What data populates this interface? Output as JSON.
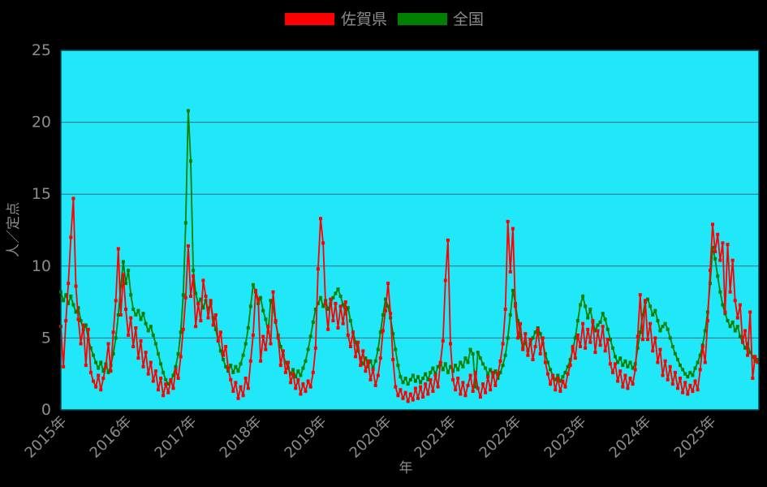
{
  "legend": {
    "entries": [
      {
        "label": "佐賀県",
        "color": "#ff0000"
      },
      {
        "label": "全国",
        "color": "#008000"
      }
    ]
  },
  "y_axis": {
    "title": "人／定点",
    "tick_labels": [
      "0",
      "5",
      "10",
      "15",
      "20",
      "25"
    ]
  },
  "x_axis": {
    "title": "年",
    "tick_labels": [
      "2015年",
      "2016年",
      "2017年",
      "2018年",
      "2019年",
      "2020年",
      "2021年",
      "2022年",
      "2023年",
      "2024年",
      "2025年"
    ]
  },
  "chart_data": {
    "type": "line",
    "title": "",
    "xlabel": "年",
    "ylabel": "人／定点",
    "ylim": [
      0,
      25
    ],
    "y_ticks": [
      0,
      5,
      10,
      15,
      20,
      25
    ],
    "x_tick_years": [
      2015,
      2016,
      2017,
      2018,
      2019,
      2020,
      2021,
      2022,
      2023,
      2024,
      2025
    ],
    "x_start_year": 2015.0,
    "x_step_years": 0.03846,
    "points_per_year": 26,
    "grid": "horizontal-only",
    "legend_position": "top-center",
    "plot_bg_color": "#20e8f8",
    "page_bg_color": "#000000",
    "marker": "square",
    "series": [
      {
        "name": "全国",
        "color": "#008000",
        "values": [
          8.2,
          7.6,
          8.0,
          7.4,
          7.9,
          7.3,
          6.8,
          7.1,
          6.2,
          5.6,
          5.9,
          4.9,
          4.3,
          3.8,
          3.3,
          2.9,
          3.3,
          2.7,
          3.2,
          2.6,
          3.1,
          3.9,
          5.0,
          6.6,
          8.6,
          10.3,
          8.8,
          9.7,
          8.0,
          7.0,
          6.6,
          6.9,
          6.3,
          6.7,
          6.0,
          5.5,
          5.8,
          5.2,
          4.6,
          3.9,
          3.2,
          2.6,
          2.1,
          1.8,
          2.0,
          2.4,
          3.0,
          3.9,
          5.4,
          8.0,
          13.0,
          20.8,
          17.3,
          9.7,
          8.1,
          7.4,
          7.7,
          7.1,
          7.6,
          7.0,
          7.4,
          6.4,
          5.6,
          4.8,
          4.1,
          3.5,
          3.0,
          2.7,
          3.1,
          2.6,
          3.0,
          2.7,
          3.2,
          3.8,
          4.6,
          5.7,
          7.2,
          8.7,
          8.2,
          7.4,
          7.8,
          6.9,
          6.3,
          5.4,
          7.6,
          7.2,
          6.1,
          5.2,
          4.4,
          3.8,
          3.3,
          2.9,
          2.5,
          2.8,
          2.3,
          2.7,
          2.4,
          2.9,
          3.4,
          4.2,
          5.1,
          6.1,
          7.0,
          7.4,
          7.8,
          7.2,
          7.6,
          7.0,
          7.4,
          7.8,
          8.1,
          8.4,
          7.9,
          7.3,
          6.7,
          7.1,
          6.2,
          5.4,
          4.7,
          4.1,
          3.6,
          3.2,
          3.6,
          3.0,
          3.4,
          2.9,
          3.4,
          4.2,
          5.4,
          6.6,
          7.7,
          7.2,
          6.4,
          5.3,
          4.2,
          3.1,
          2.3,
          1.9,
          2.2,
          1.8,
          2.1,
          2.4,
          2.0,
          2.3,
          1.9,
          2.2,
          2.5,
          2.1,
          2.6,
          2.9,
          2.5,
          3.0,
          3.3,
          2.8,
          3.2,
          2.6,
          3.0,
          2.7,
          3.1,
          2.8,
          3.3,
          3.0,
          3.6,
          3.3,
          4.2,
          3.9,
          1.6,
          4.0,
          3.6,
          3.2,
          2.9,
          2.5,
          2.8,
          2.3,
          2.7,
          2.2,
          2.6,
          3.1,
          3.8,
          5.0,
          6.6,
          8.3,
          7.4,
          6.2,
          5.1,
          4.3,
          4.7,
          4.1,
          4.6,
          5.0,
          5.4,
          5.7,
          5.3,
          4.6,
          3.9,
          3.3,
          2.8,
          2.4,
          2.1,
          2.4,
          2.0,
          2.3,
          2.6,
          3.0,
          3.5,
          4.2,
          5.0,
          6.2,
          7.3,
          7.9,
          7.2,
          6.4,
          7.0,
          6.1,
          5.5,
          5.9,
          6.1,
          6.7,
          6.3,
          5.6,
          4.9,
          4.3,
          3.7,
          3.3,
          3.6,
          3.1,
          3.4,
          3.0,
          3.3,
          2.9,
          3.2,
          4.3,
          5.4,
          6.6,
          7.5,
          7.7,
          7.2,
          6.6,
          6.9,
          6.2,
          5.5,
          5.8,
          6.0,
          5.6,
          5.0,
          4.4,
          3.9,
          3.5,
          3.1,
          2.8,
          2.5,
          2.3,
          2.6,
          2.4,
          2.9,
          3.3,
          3.8,
          4.5,
          5.5,
          6.8,
          8.8,
          11.3,
          10.5,
          9.3,
          8.2,
          7.3,
          6.7,
          6.2,
          5.8,
          6.1,
          5.5,
          5.8,
          5.1,
          4.7,
          4.3,
          4.6,
          4.0,
          3.7,
          3.4,
          3.5
        ]
      },
      {
        "name": "佐賀県",
        "color": "#ff0000",
        "values": [
          5.8,
          3.0,
          6.2,
          8.8,
          12.0,
          14.7,
          8.6,
          6.3,
          4.6,
          5.9,
          3.1,
          5.6,
          2.6,
          2.0,
          1.6,
          2.4,
          1.4,
          2.2,
          3.0,
          4.6,
          2.7,
          5.4,
          7.6,
          11.2,
          6.6,
          9.4,
          7.0,
          5.2,
          6.4,
          4.4,
          5.7,
          3.6,
          4.8,
          3.0,
          4.0,
          2.5,
          3.3,
          2.0,
          2.7,
          1.4,
          2.2,
          1.0,
          1.8,
          1.2,
          2.1,
          1.5,
          2.8,
          2.2,
          3.7,
          5.6,
          7.8,
          11.4,
          7.9,
          9.3,
          5.8,
          7.4,
          6.2,
          9.0,
          7.9,
          6.4,
          7.6,
          5.9,
          6.6,
          4.8,
          5.4,
          3.8,
          4.4,
          2.9,
          2.1,
          1.3,
          1.9,
          0.8,
          1.6,
          1.0,
          2.2,
          1.5,
          3.4,
          5.2,
          8.3,
          7.7,
          3.4,
          5.1,
          4.2,
          5.8,
          4.6,
          8.2,
          6.2,
          5.0,
          3.1,
          4.1,
          2.6,
          3.3,
          1.9,
          2.5,
          1.5,
          2.1,
          1.1,
          1.8,
          1.3,
          2.0,
          1.6,
          2.6,
          4.3,
          9.8,
          13.3,
          11.6,
          7.4,
          5.6,
          7.7,
          6.2,
          7.4,
          5.7,
          7.2,
          6.0,
          7.5,
          5.2,
          4.4,
          5.4,
          3.7,
          4.7,
          3.1,
          4.1,
          2.7,
          3.4,
          2.1,
          2.8,
          1.7,
          2.4,
          3.6,
          5.5,
          6.9,
          8.8,
          6.7,
          3.5,
          1.6,
          1.0,
          1.4,
          0.8,
          1.2,
          0.6,
          1.1,
          0.7,
          1.5,
          0.8,
          1.6,
          0.9,
          1.8,
          1.1,
          2.1,
          1.3,
          2.4,
          1.6,
          3.3,
          4.8,
          9.0,
          11.8,
          4.6,
          2.1,
          1.4,
          2.2,
          1.1,
          1.9,
          1.0,
          1.7,
          2.4,
          1.3,
          2.6,
          1.5,
          0.9,
          1.8,
          1.2,
          2.3,
          1.4,
          2.6,
          1.7,
          2.5,
          3.4,
          4.6,
          7.0,
          13.1,
          9.6,
          12.6,
          7.2,
          5.0,
          6.0,
          4.2,
          5.3,
          3.8,
          4.9,
          3.5,
          4.4,
          5.6,
          3.9,
          5.0,
          3.3,
          2.5,
          1.8,
          2.4,
          1.4,
          2.2,
          1.3,
          2.0,
          1.6,
          2.5,
          3.1,
          4.4,
          3.6,
          5.2,
          4.4,
          6.0,
          4.3,
          5.6,
          4.7,
          6.2,
          4.0,
          5.5,
          4.5,
          5.8,
          4.1,
          4.9,
          3.2,
          2.6,
          3.2,
          2.0,
          2.7,
          1.6,
          2.4,
          1.5,
          2.2,
          1.8,
          2.8,
          5.1,
          8.0,
          4.9,
          7.6,
          4.9,
          6.0,
          4.1,
          5.0,
          3.3,
          4.2,
          2.4,
          3.4,
          2.1,
          3.0,
          1.8,
          2.6,
          1.5,
          2.2,
          1.2,
          1.9,
          1.1,
          1.7,
          1.3,
          2.0,
          1.4,
          2.8,
          4.4,
          3.3,
          6.2,
          9.7,
          12.9,
          11.0,
          12.2,
          10.4,
          11.6,
          6.8,
          11.5,
          8.2,
          10.4,
          7.6,
          6.4,
          7.3,
          4.7,
          5.5,
          3.8,
          6.8,
          2.2,
          3.7,
          3.3
        ]
      }
    ]
  }
}
